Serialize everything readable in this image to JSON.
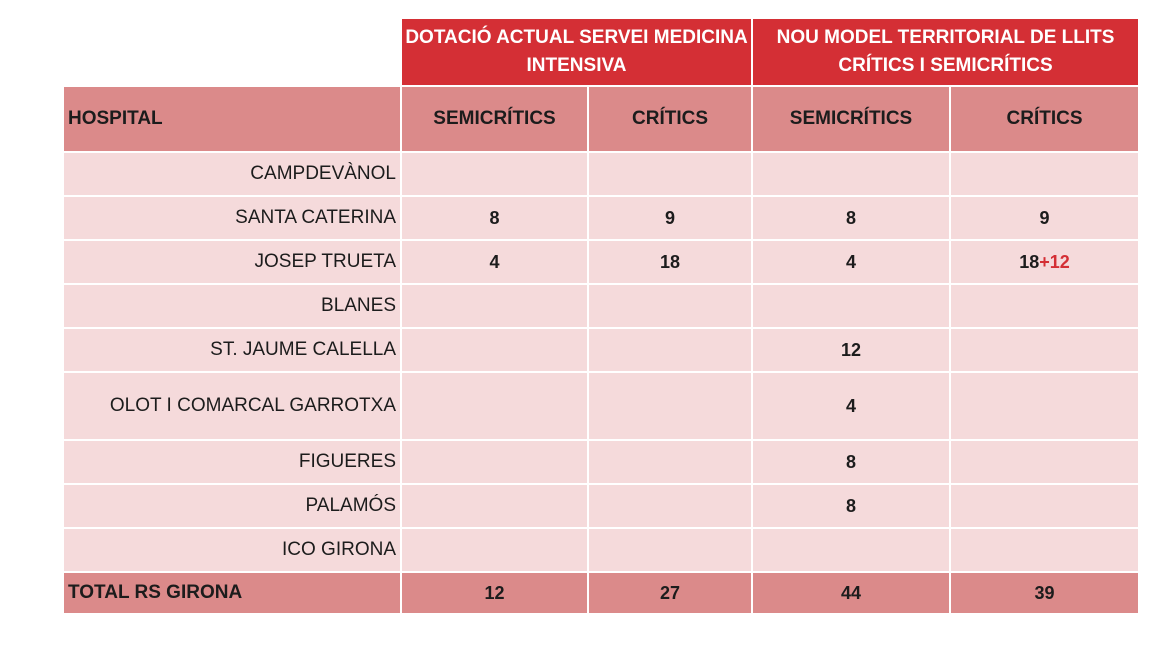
{
  "table": {
    "group_headers": {
      "current": "DOTACIÓ ACTUAL SERVEI MEDICINA INTENSIVA",
      "new_model": "NOU MODEL TERRITORIAL DE LLITS CRÍTICS I SEMICRÍTICS"
    },
    "column_headers": {
      "hospital": "HOSPITAL",
      "current_semicritics": "SEMICRÍTICS",
      "current_critics": "CRÍTICS",
      "new_semicritics": "SEMICRÍTICS",
      "new_critics": "CRÍTICS"
    },
    "rows": [
      {
        "hospital": "CAMPDEVÀNOL",
        "cur_semi": "",
        "cur_crit": "",
        "new_semi": "",
        "new_crit": "",
        "new_crit_extra": ""
      },
      {
        "hospital": "SANTA CATERINA",
        "cur_semi": "8",
        "cur_crit": "9",
        "new_semi": "8",
        "new_crit": "9",
        "new_crit_extra": ""
      },
      {
        "hospital": "JOSEP TRUETA",
        "cur_semi": "4",
        "cur_crit": "18",
        "new_semi": "4",
        "new_crit": "18",
        "new_crit_extra": "+12"
      },
      {
        "hospital": "BLANES",
        "cur_semi": "",
        "cur_crit": "",
        "new_semi": "",
        "new_crit": "",
        "new_crit_extra": ""
      },
      {
        "hospital": "ST. JAUME CALELLA",
        "cur_semi": "",
        "cur_crit": "",
        "new_semi": "12",
        "new_crit": "",
        "new_crit_extra": ""
      },
      {
        "hospital": "OLOT I COMARCAL GARROTXA",
        "cur_semi": "",
        "cur_crit": "",
        "new_semi": "4",
        "new_crit": "",
        "new_crit_extra": ""
      },
      {
        "hospital": "FIGUERES",
        "cur_semi": "",
        "cur_crit": "",
        "new_semi": "8",
        "new_crit": "",
        "new_crit_extra": ""
      },
      {
        "hospital": "PALAMÓS",
        "cur_semi": "",
        "cur_crit": "",
        "new_semi": "8",
        "new_crit": "",
        "new_crit_extra": ""
      },
      {
        "hospital": "ICO GIRONA",
        "cur_semi": "",
        "cur_crit": "",
        "new_semi": "",
        "new_crit": "",
        "new_crit_extra": ""
      }
    ],
    "total": {
      "label": "TOTAL RS GIRONA",
      "cur_semi": "12",
      "cur_crit": "27",
      "new_semi": "44",
      "new_crit": "39"
    }
  }
}
